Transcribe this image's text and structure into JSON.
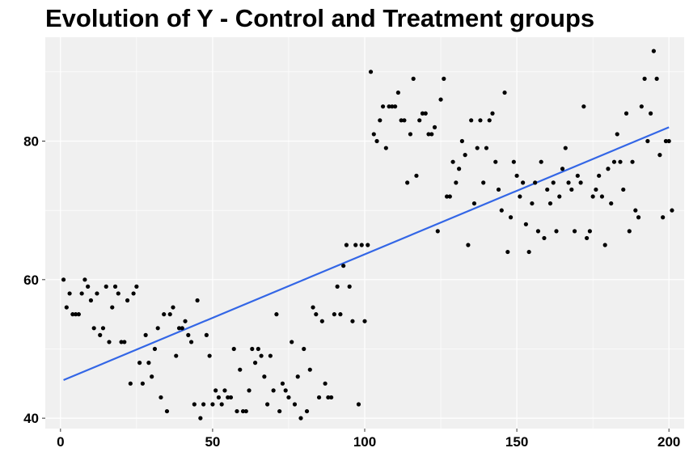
{
  "chart_data": {
    "type": "scatter",
    "title": "Evolution of Y - Control and Treatment groups",
    "xlabel": "",
    "ylabel": "",
    "xlim": [
      -5,
      205
    ],
    "ylim": [
      38.5,
      95
    ],
    "x_ticks": [
      0,
      50,
      100,
      150,
      200
    ],
    "y_ticks": [
      40,
      60,
      80
    ],
    "grid": true,
    "legend": "none",
    "colors": {
      "panel_background": "#f0f0f0",
      "grid_line": "#ffffff",
      "points": "#000000",
      "trend_line": "#3366e6"
    },
    "trend_line": {
      "x": [
        1,
        200
      ],
      "y": [
        45.5,
        82
      ]
    },
    "points": [
      [
        1,
        60
      ],
      [
        2,
        56
      ],
      [
        3,
        58
      ],
      [
        4,
        55
      ],
      [
        5,
        55
      ],
      [
        6,
        55
      ],
      [
        7,
        58
      ],
      [
        8,
        60
      ],
      [
        9,
        59
      ],
      [
        10,
        57
      ],
      [
        11,
        53
      ],
      [
        12,
        58
      ],
      [
        13,
        52
      ],
      [
        14,
        53
      ],
      [
        15,
        59
      ],
      [
        16,
        51
      ],
      [
        17,
        56
      ],
      [
        18,
        59
      ],
      [
        19,
        58
      ],
      [
        20,
        51
      ],
      [
        21,
        51
      ],
      [
        22,
        57
      ],
      [
        23,
        45
      ],
      [
        24,
        58
      ],
      [
        25,
        59
      ],
      [
        26,
        48
      ],
      [
        27,
        45
      ],
      [
        28,
        52
      ],
      [
        29,
        48
      ],
      [
        30,
        46
      ],
      [
        31,
        50
      ],
      [
        32,
        53
      ],
      [
        33,
        43
      ],
      [
        34,
        55
      ],
      [
        35,
        41
      ],
      [
        36,
        55
      ],
      [
        37,
        56
      ],
      [
        38,
        49
      ],
      [
        39,
        53
      ],
      [
        40,
        53
      ],
      [
        41,
        54
      ],
      [
        42,
        52
      ],
      [
        43,
        51
      ],
      [
        44,
        42
      ],
      [
        45,
        57
      ],
      [
        46,
        40
      ],
      [
        47,
        42
      ],
      [
        48,
        52
      ],
      [
        49,
        49
      ],
      [
        50,
        42
      ],
      [
        51,
        44
      ],
      [
        52,
        43
      ],
      [
        53,
        42
      ],
      [
        54,
        44
      ],
      [
        55,
        43
      ],
      [
        56,
        43
      ],
      [
        57,
        50
      ],
      [
        58,
        41
      ],
      [
        59,
        47
      ],
      [
        60,
        41
      ],
      [
        61,
        41
      ],
      [
        62,
        44
      ],
      [
        63,
        50
      ],
      [
        64,
        48
      ],
      [
        65,
        50
      ],
      [
        66,
        49
      ],
      [
        67,
        46
      ],
      [
        68,
        42
      ],
      [
        69,
        49
      ],
      [
        70,
        44
      ],
      [
        71,
        55
      ],
      [
        72,
        41
      ],
      [
        73,
        45
      ],
      [
        74,
        44
      ],
      [
        75,
        43
      ],
      [
        76,
        51
      ],
      [
        77,
        42
      ],
      [
        78,
        46
      ],
      [
        79,
        40
      ],
      [
        80,
        50
      ],
      [
        81,
        41
      ],
      [
        82,
        47
      ],
      [
        83,
        56
      ],
      [
        84,
        55
      ],
      [
        85,
        43
      ],
      [
        86,
        54
      ],
      [
        87,
        45
      ],
      [
        88,
        43
      ],
      [
        89,
        43
      ],
      [
        90,
        55
      ],
      [
        91,
        59
      ],
      [
        92,
        55
      ],
      [
        93,
        62
      ],
      [
        94,
        65
      ],
      [
        95,
        59
      ],
      [
        96,
        54
      ],
      [
        97,
        65
      ],
      [
        98,
        42
      ],
      [
        99,
        65
      ],
      [
        100,
        54
      ],
      [
        101,
        65
      ],
      [
        102,
        90
      ],
      [
        103,
        81
      ],
      [
        104,
        80
      ],
      [
        105,
        83
      ],
      [
        106,
        85
      ],
      [
        107,
        79
      ],
      [
        108,
        85
      ],
      [
        109,
        85
      ],
      [
        110,
        85
      ],
      [
        111,
        87
      ],
      [
        112,
        83
      ],
      [
        113,
        83
      ],
      [
        114,
        74
      ],
      [
        115,
        81
      ],
      [
        116,
        89
      ],
      [
        117,
        75
      ],
      [
        118,
        83
      ],
      [
        119,
        84
      ],
      [
        120,
        84
      ],
      [
        121,
        81
      ],
      [
        122,
        81
      ],
      [
        123,
        82
      ],
      [
        124,
        67
      ],
      [
        125,
        86
      ],
      [
        126,
        89
      ],
      [
        127,
        72
      ],
      [
        128,
        72
      ],
      [
        129,
        77
      ],
      [
        130,
        74
      ],
      [
        131,
        76
      ],
      [
        132,
        80
      ],
      [
        133,
        78
      ],
      [
        134,
        65
      ],
      [
        135,
        83
      ],
      [
        136,
        71
      ],
      [
        137,
        79
      ],
      [
        138,
        83
      ],
      [
        139,
        74
      ],
      [
        140,
        79
      ],
      [
        141,
        83
      ],
      [
        142,
        84
      ],
      [
        143,
        77
      ],
      [
        144,
        73
      ],
      [
        145,
        70
      ],
      [
        146,
        87
      ],
      [
        147,
        64
      ],
      [
        148,
        69
      ],
      [
        149,
        77
      ],
      [
        150,
        75
      ],
      [
        151,
        72
      ],
      [
        152,
        74
      ],
      [
        153,
        68
      ],
      [
        154,
        64
      ],
      [
        155,
        71
      ],
      [
        156,
        74
      ],
      [
        157,
        67
      ],
      [
        158,
        77
      ],
      [
        159,
        66
      ],
      [
        160,
        73
      ],
      [
        161,
        71
      ],
      [
        162,
        74
      ],
      [
        163,
        67
      ],
      [
        164,
        72
      ],
      [
        165,
        76
      ],
      [
        166,
        79
      ],
      [
        167,
        74
      ],
      [
        168,
        73
      ],
      [
        169,
        67
      ],
      [
        170,
        75
      ],
      [
        171,
        74
      ],
      [
        172,
        85
      ],
      [
        173,
        66
      ],
      [
        174,
        67
      ],
      [
        175,
        72
      ],
      [
        176,
        73
      ],
      [
        177,
        75
      ],
      [
        178,
        72
      ],
      [
        179,
        65
      ],
      [
        180,
        76
      ],
      [
        181,
        71
      ],
      [
        182,
        77
      ],
      [
        183,
        81
      ],
      [
        184,
        77
      ],
      [
        185,
        73
      ],
      [
        186,
        84
      ],
      [
        187,
        67
      ],
      [
        188,
        77
      ],
      [
        189,
        70
      ],
      [
        190,
        69
      ],
      [
        191,
        85
      ],
      [
        192,
        89
      ],
      [
        193,
        80
      ],
      [
        194,
        84
      ],
      [
        195,
        93
      ],
      [
        196,
        89
      ],
      [
        197,
        78
      ],
      [
        198,
        69
      ],
      [
        199,
        80
      ],
      [
        200,
        80
      ],
      [
        201,
        70
      ]
    ]
  }
}
